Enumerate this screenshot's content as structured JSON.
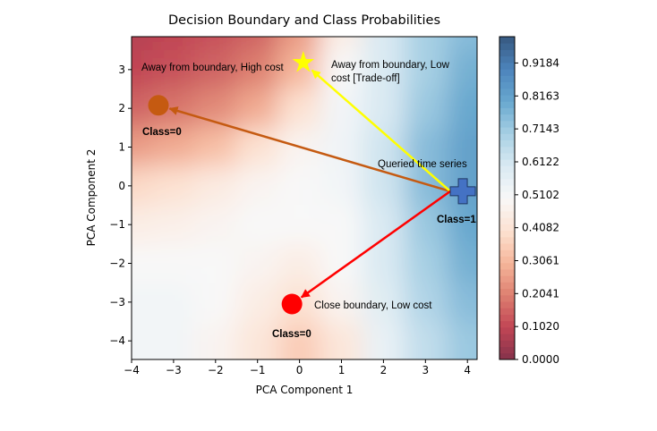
{
  "chart_data": {
    "type": "contour",
    "title": "Decision Boundary and Class Probabilities",
    "x_label": "PCA Component 1",
    "y_label": "PCA Component 2",
    "xlim": [
      -4.0,
      4.23
    ],
    "ylim": [
      -4.48,
      3.85
    ],
    "xticks": [
      {
        "value": -4,
        "label": "−4"
      },
      {
        "value": -3,
        "label": "−3"
      },
      {
        "value": -2,
        "label": "−2"
      },
      {
        "value": -1,
        "label": "−1"
      },
      0,
      1,
      2,
      3,
      4
    ],
    "yticks": [
      {
        "value": -4,
        "label": "−4"
      },
      {
        "value": -3,
        "label": "−3"
      },
      {
        "value": -2,
        "label": "−2"
      },
      {
        "value": -1,
        "label": "−1"
      },
      0,
      1,
      2,
      3
    ],
    "colormap": [
      "#67001f",
      "#b2182b",
      "#d6604d",
      "#f4a582",
      "#fddbc7",
      "#f7f7f7",
      "#d1e5f0",
      "#92c5de",
      "#4393c3",
      "#2166ac",
      "#053061"
    ],
    "alpha": 0.8,
    "clim": [
      0,
      1.0
    ],
    "levels": 50,
    "colorbar_ticks": [
      {
        "value": 0,
        "label": "0.0000"
      },
      {
        "value": 0.102,
        "label": "0.1020"
      },
      {
        "value": 0.2041,
        "label": "0.2041"
      },
      {
        "value": 0.3061,
        "label": "0.3061"
      },
      {
        "value": 0.4082,
        "label": "0.4082"
      },
      {
        "value": 0.5102,
        "label": "0.5102"
      },
      {
        "value": 0.6122,
        "label": "0.6122"
      },
      {
        "value": 0.7143,
        "label": "0.7143"
      },
      {
        "value": 0.8163,
        "label": "0.8163"
      },
      {
        "value": 0.9184,
        "label": "0.9184"
      }
    ],
    "field": {
      "x": [
        -4,
        -3,
        -2,
        -1,
        0,
        1,
        2,
        3,
        4
      ],
      "y": [
        4,
        3,
        2,
        1,
        0,
        -1,
        -2,
        -3,
        -4
      ],
      "values": [
        [
          0.08,
          0.1,
          0.12,
          0.15,
          0.25,
          0.45,
          0.6,
          0.7,
          0.75
        ],
        [
          0.1,
          0.12,
          0.15,
          0.2,
          0.3,
          0.5,
          0.6,
          0.7,
          0.78
        ],
        [
          0.15,
          0.18,
          0.22,
          0.28,
          0.4,
          0.52,
          0.6,
          0.72,
          0.8
        ],
        [
          0.25,
          0.28,
          0.32,
          0.4,
          0.48,
          0.53,
          0.62,
          0.75,
          0.82
        ],
        [
          0.38,
          0.4,
          0.44,
          0.48,
          0.5,
          0.52,
          0.62,
          0.75,
          0.82
        ],
        [
          0.45,
          0.46,
          0.48,
          0.5,
          0.5,
          0.5,
          0.6,
          0.72,
          0.8
        ],
        [
          0.5,
          0.5,
          0.5,
          0.48,
          0.45,
          0.5,
          0.6,
          0.7,
          0.78
        ],
        [
          0.52,
          0.52,
          0.5,
          0.45,
          0.4,
          0.48,
          0.58,
          0.68,
          0.75
        ],
        [
          0.52,
          0.52,
          0.48,
          0.42,
          0.35,
          0.42,
          0.55,
          0.65,
          0.72
        ]
      ]
    },
    "points": [
      {
        "x": 3.89,
        "y": -0.14,
        "marker": "plus",
        "color": "#4472c4",
        "label": "Queried time series",
        "class_label": "Class=1"
      },
      {
        "x": -3.36,
        "y": 2.08,
        "marker": "circle",
        "color": "#c55a11",
        "label": "Away from boundary, High cost",
        "class_label": "Class=0"
      },
      {
        "x": 0.09,
        "y": 3.18,
        "marker": "star",
        "color": "#ffff00",
        "label": "Away from boundary, Low cost [Trade-off]"
      },
      {
        "x": -0.18,
        "y": -3.05,
        "marker": "circle",
        "color": "#ff0000",
        "label": "Close boundary, Low cost",
        "class_label": "Class=0"
      }
    ]
  }
}
